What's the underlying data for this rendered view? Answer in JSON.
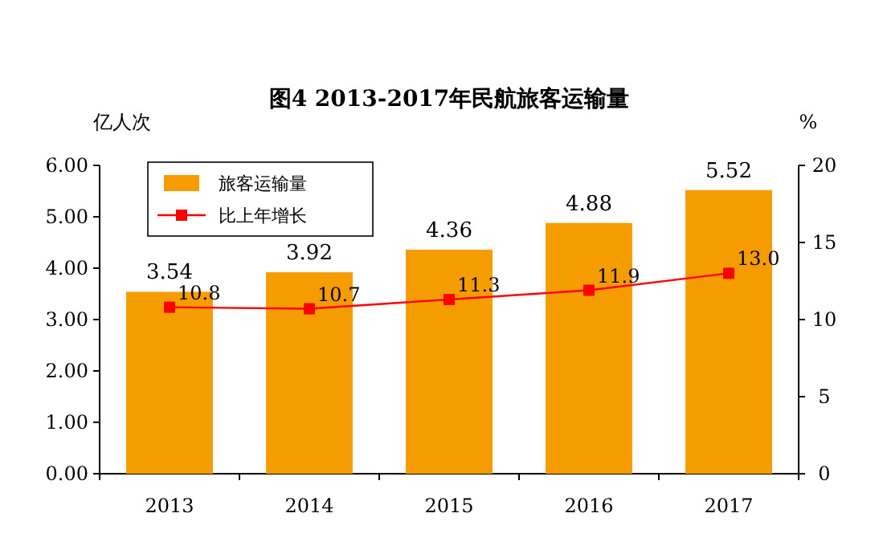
{
  "chart_data": {
    "type": "bar",
    "title": "图4 2013-2017年民航旅客运输量",
    "ylabel": "亿人次",
    "y2label": "%",
    "categories": [
      "2013",
      "2014",
      "2015",
      "2016",
      "2017"
    ],
    "series": [
      {
        "name": "旅客运输量",
        "color": "#f59c00",
        "values": [
          3.54,
          3.92,
          4.36,
          4.88,
          5.52
        ],
        "value_labels": [
          "3.54",
          "3.92",
          "4.36",
          "4.88",
          "5.52"
        ]
      },
      {
        "name": "比上年增长",
        "type": "line",
        "axis": "y2",
        "color": "#ff0000",
        "marker": "square",
        "values": [
          10.8,
          10.7,
          11.3,
          11.9,
          13.0
        ],
        "value_labels": [
          "10.8",
          "10.7",
          "11.3",
          "11.9",
          "13.0"
        ]
      }
    ],
    "ylim": [
      0,
      6
    ],
    "yticks": [
      {
        "value": 0,
        "label": "0.00"
      },
      {
        "value": 1,
        "label": "1.00"
      },
      {
        "value": 2,
        "label": "2.00"
      },
      {
        "value": 3,
        "label": "3.00"
      },
      {
        "value": 4,
        "label": "4.00"
      },
      {
        "value": 5,
        "label": "5.00"
      },
      {
        "value": 6,
        "label": "6.00"
      }
    ],
    "y2lim": [
      0,
      20
    ],
    "y2ticks": [
      0,
      5,
      10,
      15,
      20
    ],
    "grid": false,
    "legend": "top left"
  }
}
